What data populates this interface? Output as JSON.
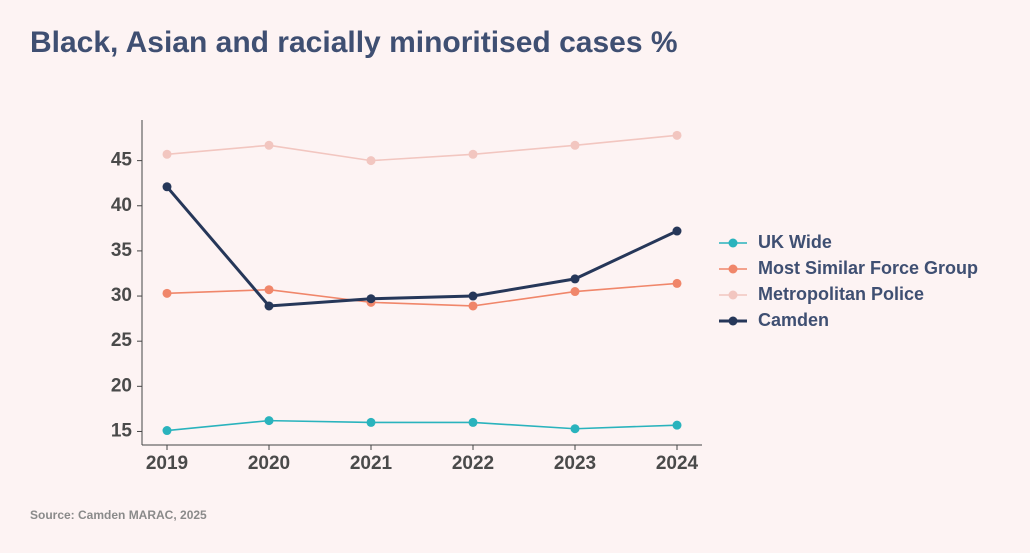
{
  "chart_data": {
    "type": "line",
    "title": "Black, Asian and racially minoritised cases %",
    "source": "Source: Camden MARAC, 2025",
    "categories": [
      "2019",
      "2020",
      "2021",
      "2022",
      "2023",
      "2024"
    ],
    "series": [
      {
        "name": "UK Wide",
        "color": "#2ab3bd",
        "values": [
          15.1,
          16.2,
          16.0,
          16.0,
          15.3,
          15.7
        ]
      },
      {
        "name": "Most Similar Force Group",
        "color": "#f0866a",
        "values": [
          30.3,
          30.7,
          29.3,
          28.9,
          30.5,
          31.4
        ]
      },
      {
        "name": "Metropolitan Police",
        "color": "#f2c6c0",
        "values": [
          45.7,
          46.7,
          45.0,
          45.7,
          46.7,
          47.8
        ]
      },
      {
        "name": "Camden",
        "color": "#263759",
        "values": [
          42.1,
          28.9,
          29.7,
          30.0,
          31.9,
          37.2
        ]
      }
    ],
    "ylim": [
      13.5,
      49.5
    ],
    "yticks": [
      15,
      20,
      25,
      30,
      35,
      40,
      45
    ],
    "legend": "right"
  }
}
